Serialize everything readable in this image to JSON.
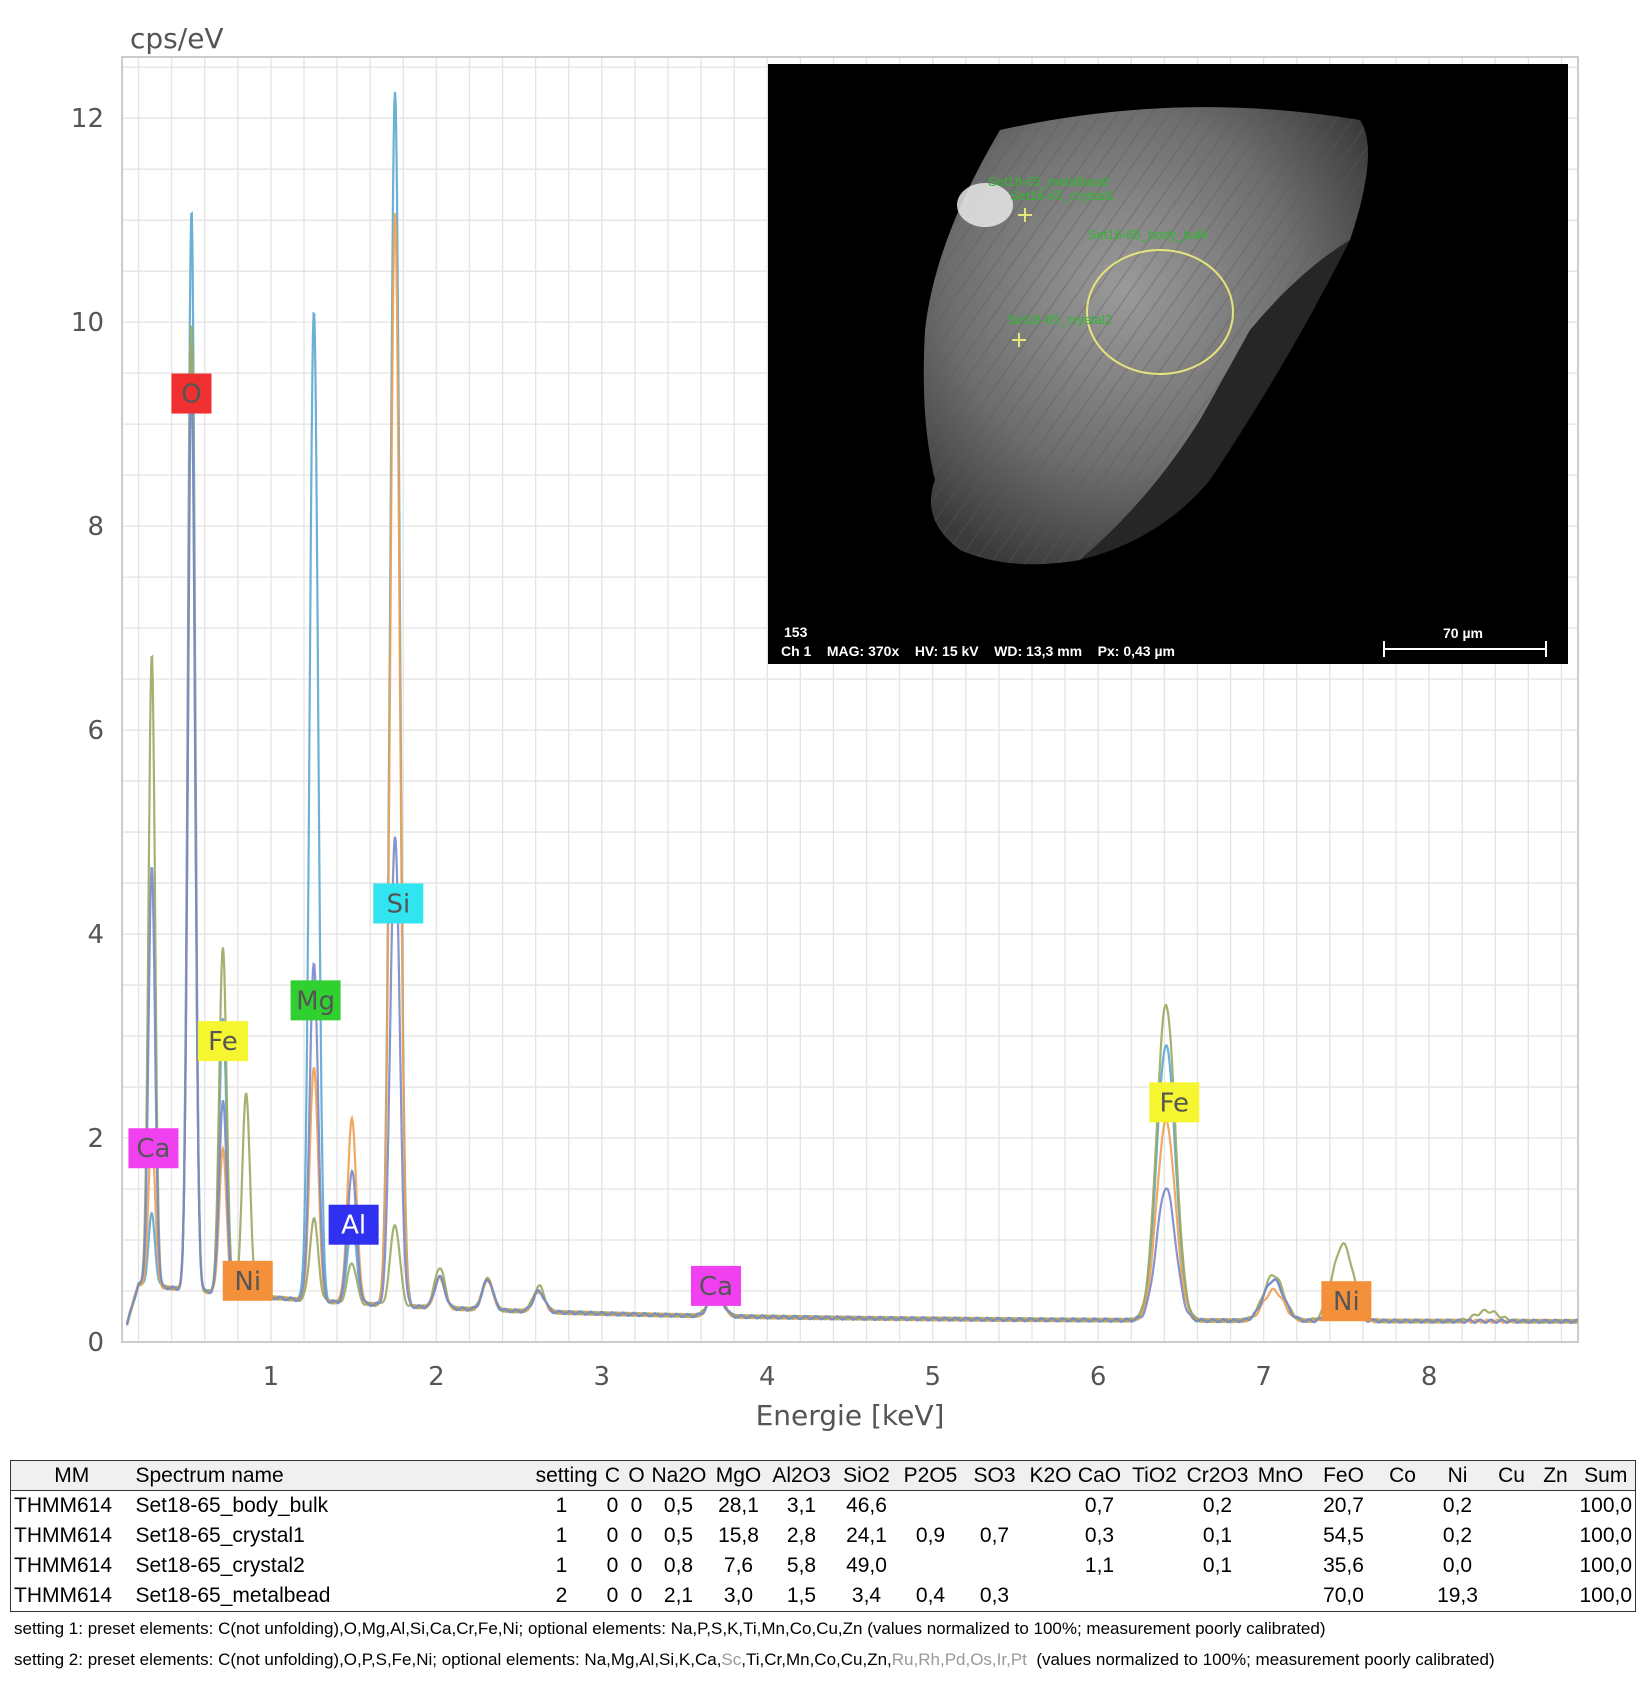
{
  "chart_data": {
    "type": "line",
    "ylabel": "cps/eV",
    "xlabel": "Energie [keV]",
    "xlim": [
      0.1,
      8.9
    ],
    "ylim": [
      0,
      12.6
    ],
    "xticks": [
      1,
      2,
      3,
      4,
      5,
      6,
      7,
      8
    ],
    "yticks": [
      0,
      2,
      4,
      6,
      8,
      10,
      12
    ],
    "grid": true,
    "series": [
      {
        "color": "#5aa9d0",
        "peaks": [
          [
            0.28,
            0.7
          ],
          [
            0.52,
            10.6
          ],
          [
            0.71,
            2.7
          ],
          [
            0.85,
            0.1
          ],
          [
            1.26,
            9.7
          ],
          [
            1.49,
            0.8
          ],
          [
            1.75,
            11.9
          ],
          [
            2.02,
            0.3
          ],
          [
            2.31,
            0.3
          ],
          [
            2.62,
            0.2
          ],
          [
            3.69,
            0.25
          ],
          [
            6.41,
            2.7
          ],
          [
            7.06,
            0.4
          ],
          [
            7.48,
            0.15
          ]
        ]
      },
      {
        "color": "#f0a050",
        "peaks": [
          [
            0.28,
            1.5
          ],
          [
            0.52,
            9.3
          ],
          [
            0.71,
            1.4
          ],
          [
            0.85,
            0.1
          ],
          [
            1.26,
            2.3
          ],
          [
            1.49,
            1.8
          ],
          [
            1.75,
            10.7
          ],
          [
            2.02,
            0.3
          ],
          [
            2.31,
            0.3
          ],
          [
            2.62,
            0.2
          ],
          [
            3.69,
            0.25
          ],
          [
            6.41,
            1.95
          ],
          [
            7.06,
            0.3
          ],
          [
            7.48,
            0.2
          ]
        ]
      },
      {
        "color": "#9aa860",
        "peaks": [
          [
            0.28,
            6.2
          ],
          [
            0.52,
            9.5
          ],
          [
            0.71,
            3.4
          ],
          [
            0.85,
            2.0
          ],
          [
            1.26,
            0.8
          ],
          [
            1.49,
            0.4
          ],
          [
            1.75,
            0.8
          ],
          [
            2.02,
            0.4
          ],
          [
            2.31,
            0.3
          ],
          [
            2.62,
            0.25
          ],
          [
            3.69,
            0.3
          ],
          [
            6.41,
            3.1
          ],
          [
            7.06,
            0.45
          ],
          [
            7.48,
            0.75
          ],
          [
            8.35,
            0.1
          ]
        ]
      },
      {
        "color": "#7a88c8",
        "peaks": [
          [
            0.28,
            4.1
          ],
          [
            0.52,
            9.0
          ],
          [
            0.71,
            1.9
          ],
          [
            0.85,
            0.1
          ],
          [
            1.26,
            3.3
          ],
          [
            1.49,
            1.3
          ],
          [
            1.75,
            4.6
          ],
          [
            2.02,
            0.3
          ],
          [
            2.31,
            0.3
          ],
          [
            2.62,
            0.2
          ],
          [
            3.69,
            0.25
          ],
          [
            6.41,
            1.3
          ],
          [
            7.06,
            0.4
          ],
          [
            7.48,
            0.15
          ]
        ]
      }
    ],
    "peak_labels": [
      {
        "text": "O",
        "x": 0.52,
        "y": 9.3,
        "bg": "#f03030"
      },
      {
        "text": "Ca",
        "x": 0.29,
        "y": 1.9,
        "bg": "#f040f0"
      },
      {
        "text": "Fe",
        "x": 0.71,
        "y": 2.95,
        "bg": "#f5f530"
      },
      {
        "text": "Ni",
        "x": 0.86,
        "y": 0.6,
        "bg": "#f5903a"
      },
      {
        "text": "Mg",
        "x": 1.27,
        "y": 3.35,
        "bg": "#30d030"
      },
      {
        "text": "Al",
        "x": 1.5,
        "y": 1.15,
        "bg": "#3030f0"
      },
      {
        "text": "Si",
        "x": 1.77,
        "y": 4.3,
        "bg": "#30e5f0"
      },
      {
        "text": "Ca",
        "x": 3.69,
        "y": 0.55,
        "bg": "#f040f0"
      },
      {
        "text": "Fe",
        "x": 6.46,
        "y": 2.35,
        "bg": "#f5f530"
      },
      {
        "text": "Ni",
        "x": 7.5,
        "y": 0.4,
        "bg": "#f5903a"
      }
    ]
  },
  "sem_image": {
    "annotations": [
      "Set18-65_metalbead",
      "Set18-65_crystal1",
      "Set18-65_body_bulk",
      "Set18-65_crystal2"
    ],
    "id": "153",
    "info": "Ch 1    MAG: 370x    HV: 15 kV    WD: 13,3 mm    Px: 0,43 µm",
    "scalebar": "70 µm"
  },
  "table": {
    "headers": [
      "MM",
      "Spectrum name",
      "setting",
      "C",
      "O",
      "Na2O",
      "MgO",
      "Al2O3",
      "SiO2",
      "P2O5",
      "SO3",
      "K2O",
      "CaO",
      "TiO2",
      "Cr2O3",
      "MnO",
      "FeO",
      "Co",
      "Ni",
      "Cu",
      "Zn",
      "Sum"
    ],
    "rows": [
      [
        "THMM614",
        "Set18-65_body_bulk",
        "1",
        "0",
        "0",
        "0,5",
        "28,1",
        "3,1",
        "46,6",
        "",
        "",
        "",
        "0,7",
        "",
        "0,2",
        "",
        "20,7",
        "",
        "0,2",
        "",
        "",
        "100,0"
      ],
      [
        "THMM614",
        "Set18-65_crystal1",
        "1",
        "0",
        "0",
        "0,5",
        "15,8",
        "2,8",
        "24,1",
        "0,9",
        "0,7",
        "",
        "0,3",
        "",
        "0,1",
        "",
        "54,5",
        "",
        "0,2",
        "",
        "",
        "100,0"
      ],
      [
        "THMM614",
        "Set18-65_crystal2",
        "1",
        "0",
        "0",
        "0,8",
        "7,6",
        "5,8",
        "49,0",
        "",
        "",
        "",
        "1,1",
        "",
        "0,1",
        "",
        "35,6",
        "",
        "0,0",
        "",
        "",
        "100,0"
      ],
      [
        "THMM614",
        "Set18-65_metalbead",
        "2",
        "0",
        "0",
        "2,1",
        "3,0",
        "1,5",
        "3,4",
        "0,4",
        "0,3",
        "",
        "",
        "",
        "",
        "",
        "70,0",
        "",
        "19,3",
        "",
        "",
        "100,0"
      ]
    ]
  },
  "notes": {
    "setting1": "setting 1: preset elements: C(not unfolding),O,Mg,Al,Si,Ca,Cr,Fe,Ni; optional elements: Na,P,S,K,Ti,Mn,Co,Cu,Zn (values normalized to 100%; measurement poorly calibrated)",
    "setting2_a": "setting 2: preset elements: C(not unfolding),O,P,S,Fe,Ni; optional elements: Na,Mg,Al,Si,K,Ca,",
    "setting2_b": "Sc",
    "setting2_c": ",Ti,Cr,Mn,Co,Cu,Zn,",
    "setting2_d": "Ru,Rh,Pd,Os,Ir,Pt",
    "setting2_e": "  (values normalized to 100%; measurement poorly calibrated)"
  }
}
